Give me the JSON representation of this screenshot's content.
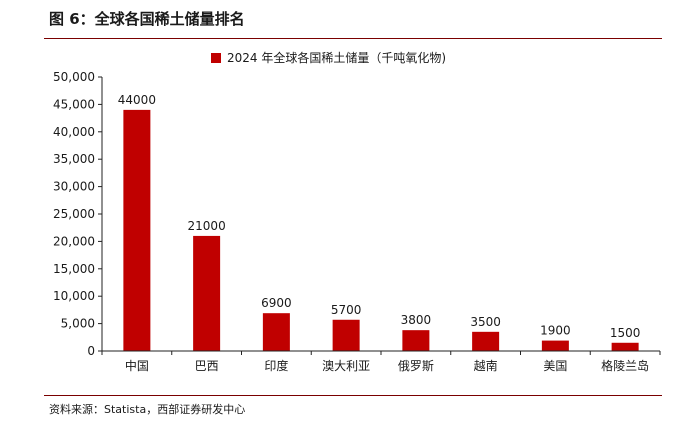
{
  "figure": {
    "title": "图 6：全球各国稀土储量排名",
    "source": "资料来源：Statista，西部证券研发中心"
  },
  "chart_data": {
    "type": "bar",
    "categories": [
      "中国",
      "巴西",
      "印度",
      "澳大利亚",
      "俄罗斯",
      "越南",
      "美国",
      "格陵兰岛"
    ],
    "series": [
      {
        "name": "2024 年全球各国稀土储量（千吨氧化物)",
        "values": [
          44000,
          21000,
          6900,
          5700,
          3800,
          3500,
          1900,
          1500
        ]
      }
    ],
    "data_labels": [
      "44000",
      "21000",
      "6900",
      "5700",
      "3800",
      "3500",
      "1900",
      "1500"
    ],
    "y_ticks": [
      0,
      5000,
      10000,
      15000,
      20000,
      25000,
      30000,
      35000,
      40000,
      45000,
      50000
    ],
    "y_tick_labels": [
      "0",
      "5,000",
      "10,000",
      "15,000",
      "20,000",
      "25,000",
      "30,000",
      "35,000",
      "40,000",
      "45,000",
      "50,000"
    ],
    "ylim": [
      0,
      50000
    ],
    "grid": false,
    "legend_position": "top",
    "bar_color": "#c00000"
  }
}
